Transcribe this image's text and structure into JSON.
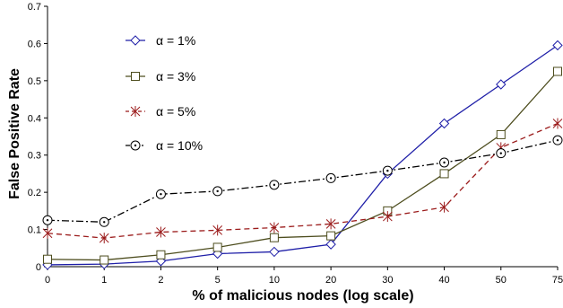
{
  "chart_data": {
    "type": "line",
    "title": "",
    "xlabel": "% of malicious nodes (log scale)",
    "ylabel": "False Positive Rate",
    "categories": [
      "0",
      "1",
      "2",
      "5",
      "10",
      "20",
      "30",
      "40",
      "50",
      "75"
    ],
    "ylim": [
      0,
      0.7
    ],
    "yticks": [
      "0",
      "0.1",
      "0.2",
      "0.3",
      "0.4",
      "0.5",
      "0.6",
      "0.7"
    ],
    "grid": false,
    "legend_position": "top-left",
    "series": [
      {
        "name": "α = 1%",
        "color": "#1f1fa8",
        "dash": "solid",
        "marker": "diamond",
        "values": [
          0.005,
          0.007,
          0.015,
          0.035,
          0.04,
          0.06,
          0.25,
          0.385,
          0.49,
          0.595
        ]
      },
      {
        "name": "α = 3%",
        "color": "#4d4d1e",
        "dash": "solid",
        "marker": "square",
        "values": [
          0.02,
          0.018,
          0.032,
          0.052,
          0.078,
          0.083,
          0.15,
          0.25,
          0.355,
          0.525
        ]
      },
      {
        "name": "α = 5%",
        "color": "#9b1b1b",
        "dash": "dashed",
        "marker": "star",
        "values": [
          0.09,
          0.077,
          0.093,
          0.098,
          0.105,
          0.115,
          0.135,
          0.16,
          0.32,
          0.385
        ]
      },
      {
        "name": "α = 10%",
        "color": "#000000",
        "dash": "dashdot",
        "marker": "dotted-circle",
        "values": [
          0.125,
          0.12,
          0.195,
          0.203,
          0.22,
          0.238,
          0.258,
          0.28,
          0.305,
          0.34
        ]
      }
    ]
  }
}
